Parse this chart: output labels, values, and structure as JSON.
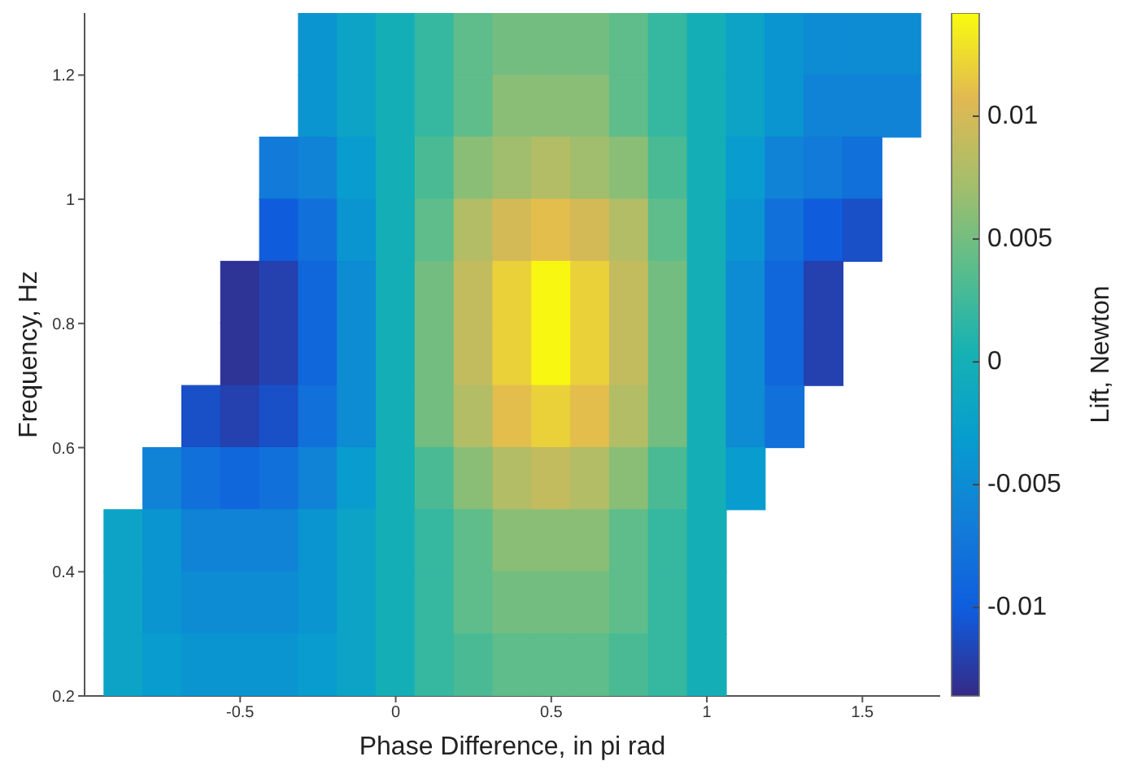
{
  "chart_data": {
    "type": "scatter",
    "xlabel": "Phase Difference, in pi rad",
    "ylabel": "Frequency, Hz",
    "clabel": "Lift, Newton",
    "marker": "square",
    "xlim": [
      -1,
      1.75
    ],
    "xticks": [
      -0.5,
      0,
      0.5,
      1,
      1.5
    ],
    "ylim": [
      0.2,
      1.3
    ],
    "yticks": [
      0.2,
      0.4,
      0.6,
      0.8,
      1,
      1.2
    ],
    "clim": [
      -0.0136,
      0.0142
    ],
    "cticks": [
      -0.01,
      -0.005,
      0,
      0.005,
      0.01
    ],
    "series": [
      {
        "x": [
          -0.25,
          -0.125,
          0,
          0.125,
          0.25,
          0.375,
          0.5,
          0.625,
          0.75,
          0.875,
          1,
          1.125,
          1.25,
          1.375,
          1.5,
          1.625
        ],
        "values": [
          1.25,
          1.25,
          1.25,
          1.25,
          1.25,
          1.25,
          1.25,
          1.25,
          1.25,
          1.25,
          1.25,
          1.25,
          1.25,
          1.25,
          1.25,
          1.25
        ],
        "cvalues": [
          -0.004,
          -0.002,
          0,
          0.002,
          0.004,
          0.005,
          0.005,
          0.005,
          0.004,
          0.002,
          0,
          -0.002,
          -0.004,
          -0.005,
          -0.005,
          -0.005
        ],
        "colors": [
          "#0a95d1",
          "#0ca3c6",
          "#14afb6",
          "#36b7a0",
          "#5ebd8a",
          "#74bd80",
          "#74bd80",
          "#74bd80",
          "#5ebd8a",
          "#36b7a0",
          "#14afb6",
          "#0ca3c6",
          "#0a95d1",
          "#0d8cd4",
          "#0d8cd4",
          "#0d8cd4"
        ]
      },
      {
        "x": [
          -0.25,
          -0.125,
          0,
          0.125,
          0.25,
          0.375,
          0.5,
          0.625,
          0.75,
          0.875,
          1,
          1.125,
          1.25,
          1.375,
          1.5,
          1.625
        ],
        "values": [
          1.15,
          1.15,
          1.15,
          1.15,
          1.15,
          1.15,
          1.15,
          1.15,
          1.15,
          1.15,
          1.15,
          1.15,
          1.15,
          1.15,
          1.15,
          1.15
        ],
        "cvalues": [
          -0.004,
          -0.002,
          0,
          0.002,
          0.004,
          0.006,
          0.006,
          0.006,
          0.004,
          0.002,
          0,
          -0.002,
          -0.004,
          -0.006,
          -0.006,
          -0.006
        ],
        "colors": [
          "#0a95d1",
          "#0ca3c6",
          "#14afb6",
          "#36b7a0",
          "#5ebd8a",
          "#8abe77",
          "#8abe77",
          "#8abe77",
          "#5ebd8a",
          "#36b7a0",
          "#14afb6",
          "#0ca3c6",
          "#0a95d1",
          "#1083d6",
          "#1083d6",
          "#1083d6"
        ]
      },
      {
        "x": [
          -0.375,
          -0.25,
          -0.125,
          0,
          0.125,
          0.25,
          0.375,
          0.5,
          0.625,
          0.75,
          0.875,
          1,
          1.125,
          1.25,
          1.375,
          1.5
        ],
        "values": [
          1.05,
          1.05,
          1.05,
          1.05,
          1.05,
          1.05,
          1.05,
          1.05,
          1.05,
          1.05,
          1.05,
          1.05,
          1.05,
          1.05,
          1.05,
          1.05
        ],
        "cvalues": [
          -0.007,
          -0.006,
          -0.003,
          0,
          0.003,
          0.006,
          0.007,
          0.008,
          0.007,
          0.006,
          0.003,
          0,
          -0.003,
          -0.006,
          -0.007,
          -0.008
        ],
        "colors": [
          "#127ad8",
          "#1083d6",
          "#089dce",
          "#14afb6",
          "#4aba95",
          "#8abe77",
          "#a0be6d",
          "#b2bd66",
          "#a0be6d",
          "#8abe77",
          "#4aba95",
          "#14afb6",
          "#089dce",
          "#1083d6",
          "#127ad8",
          "#1170da"
        ]
      },
      {
        "x": [
          -0.375,
          -0.25,
          -0.125,
          0,
          0.125,
          0.25,
          0.375,
          0.5,
          0.625,
          0.75,
          0.875,
          1,
          1.125,
          1.25,
          1.375,
          1.5
        ],
        "values": [
          0.95,
          0.95,
          0.95,
          0.95,
          0.95,
          0.95,
          0.95,
          0.95,
          0.95,
          0.95,
          0.95,
          0.95,
          0.95,
          0.95,
          0.95,
          0.95
        ],
        "cvalues": [
          -0.01,
          -0.008,
          -0.004,
          0,
          0.004,
          0.008,
          0.01,
          0.011,
          0.01,
          0.008,
          0.004,
          0,
          -0.004,
          -0.008,
          -0.01,
          -0.011
        ],
        "colors": [
          "#0f5ddd",
          "#1170da",
          "#0a95d1",
          "#14afb6",
          "#5ebd8a",
          "#b2bd66",
          "#d4ba57",
          "#e3be4d",
          "#d4ba57",
          "#b2bd66",
          "#5ebd8a",
          "#14afb6",
          "#0a95d1",
          "#1170da",
          "#0f5ddd",
          "#194fc7"
        ]
      },
      {
        "x": [
          -0.5,
          -0.375,
          -0.25,
          -0.125,
          0,
          0.125,
          0.25,
          0.375,
          0.5,
          0.625,
          0.75,
          0.875,
          1,
          1.125,
          1.25,
          1.375
        ],
        "values": [
          0.85,
          0.85,
          0.85,
          0.85,
          0.85,
          0.85,
          0.85,
          0.85,
          0.85,
          0.85,
          0.85,
          0.85,
          0.85,
          0.85,
          0.85,
          0.85
        ],
        "cvalues": [
          -0.013,
          -0.012,
          -0.009,
          -0.005,
          0,
          0.005,
          0.009,
          0.012,
          0.014,
          0.012,
          0.009,
          0.005,
          0,
          -0.005,
          -0.009,
          -0.012
        ],
        "colors": [
          "#2e3396",
          "#2441af",
          "#1067db",
          "#0d8cd4",
          "#14afb6",
          "#74bd80",
          "#c3bc5e",
          "#ead139",
          "#f8f712",
          "#ead139",
          "#c3bc5e",
          "#74bd80",
          "#14afb6",
          "#0d8cd4",
          "#1067db",
          "#2441af"
        ]
      },
      {
        "x": [
          -0.5,
          -0.375,
          -0.25,
          -0.125,
          0,
          0.125,
          0.25,
          0.375,
          0.5,
          0.625,
          0.75,
          0.875,
          1,
          1.125,
          1.25,
          1.375
        ],
        "values": [
          0.75,
          0.75,
          0.75,
          0.75,
          0.75,
          0.75,
          0.75,
          0.75,
          0.75,
          0.75,
          0.75,
          0.75,
          0.75,
          0.75,
          0.75,
          0.75
        ],
        "cvalues": [
          -0.013,
          -0.012,
          -0.009,
          -0.005,
          0,
          0.005,
          0.009,
          0.012,
          0.014,
          0.012,
          0.009,
          0.005,
          0,
          -0.005,
          -0.009,
          -0.012
        ],
        "colors": [
          "#2e3396",
          "#2441af",
          "#1067db",
          "#0d8cd4",
          "#14afb6",
          "#74bd80",
          "#c3bc5e",
          "#ead139",
          "#f8f712",
          "#ead139",
          "#c3bc5e",
          "#74bd80",
          "#14afb6",
          "#0d8cd4",
          "#1067db",
          "#2441af"
        ]
      },
      {
        "x": [
          -0.625,
          -0.5,
          -0.375,
          -0.25,
          -0.125,
          0,
          0.125,
          0.25,
          0.375,
          0.5,
          0.625,
          0.75,
          0.875,
          1,
          1.125,
          1.25
        ],
        "values": [
          0.65,
          0.65,
          0.65,
          0.65,
          0.65,
          0.65,
          0.65,
          0.65,
          0.65,
          0.65,
          0.65,
          0.65,
          0.65,
          0.65,
          0.65,
          0.65
        ],
        "cvalues": [
          -0.011,
          -0.012,
          -0.011,
          -0.008,
          -0.005,
          0,
          0.005,
          0.008,
          0.011,
          0.012,
          0.011,
          0.008,
          0.005,
          0,
          -0.005,
          -0.008
        ],
        "colors": [
          "#194fc7",
          "#2441af",
          "#194fc7",
          "#1170da",
          "#0d8cd4",
          "#14afb6",
          "#74bd80",
          "#b2bd66",
          "#e3be4d",
          "#ead139",
          "#e3be4d",
          "#b2bd66",
          "#74bd80",
          "#14afb6",
          "#0d8cd4",
          "#1170da"
        ]
      },
      {
        "x": [
          -0.75,
          -0.625,
          -0.5,
          -0.375,
          -0.25,
          -0.125,
          0,
          0.125,
          0.25,
          0.375,
          0.5,
          0.625,
          0.75,
          0.875,
          1,
          1.125
        ],
        "values": [
          0.55,
          0.55,
          0.55,
          0.55,
          0.55,
          0.55,
          0.55,
          0.55,
          0.55,
          0.55,
          0.55,
          0.55,
          0.55,
          0.55,
          0.55,
          0.55
        ],
        "cvalues": [
          -0.006,
          -0.008,
          -0.009,
          -0.008,
          -0.006,
          -0.003,
          0,
          0.003,
          0.006,
          0.008,
          0.009,
          0.008,
          0.006,
          0.003,
          0,
          -0.003
        ],
        "colors": [
          "#1083d6",
          "#1170da",
          "#1067db",
          "#1170da",
          "#1083d6",
          "#089dce",
          "#14afb6",
          "#4aba95",
          "#8abe77",
          "#b2bd66",
          "#c3bc5e",
          "#b2bd66",
          "#8abe77",
          "#4aba95",
          "#14afb6",
          "#089dce"
        ]
      },
      {
        "x": [
          -0.875,
          -0.75,
          -0.625,
          -0.5,
          -0.375,
          -0.25,
          -0.125,
          0,
          0.125,
          0.25,
          0.375,
          0.5,
          0.625,
          0.75,
          0.875,
          1
        ],
        "values": [
          0.45,
          0.45,
          0.45,
          0.45,
          0.45,
          0.45,
          0.45,
          0.45,
          0.45,
          0.45,
          0.45,
          0.45,
          0.45,
          0.45,
          0.45,
          0.45
        ],
        "cvalues": [
          -0.002,
          -0.004,
          -0.006,
          -0.006,
          -0.006,
          -0.004,
          -0.002,
          0,
          0.002,
          0.004,
          0.006,
          0.006,
          0.006,
          0.004,
          0.002,
          0
        ],
        "colors": [
          "#0ca3c6",
          "#0a95d1",
          "#1083d6",
          "#1083d6",
          "#1083d6",
          "#0a95d1",
          "#0ca3c6",
          "#14afb6",
          "#36b7a0",
          "#5ebd8a",
          "#8abe77",
          "#8abe77",
          "#8abe77",
          "#5ebd8a",
          "#36b7a0",
          "#14afb6"
        ]
      },
      {
        "x": [
          -0.875,
          -0.75,
          -0.625,
          -0.5,
          -0.375,
          -0.25,
          -0.125,
          0,
          0.125,
          0.25,
          0.375,
          0.5,
          0.625,
          0.75,
          0.875,
          1
        ],
        "values": [
          0.35,
          0.35,
          0.35,
          0.35,
          0.35,
          0.35,
          0.35,
          0.35,
          0.35,
          0.35,
          0.35,
          0.35,
          0.35,
          0.35,
          0.35,
          0.35
        ],
        "cvalues": [
          -0.002,
          -0.004,
          -0.005,
          -0.005,
          -0.005,
          -0.004,
          -0.002,
          0,
          0.002,
          0.004,
          0.005,
          0.005,
          0.005,
          0.004,
          0.002,
          0
        ],
        "colors": [
          "#0ca3c6",
          "#0a95d1",
          "#0d8cd4",
          "#0d8cd4",
          "#0d8cd4",
          "#0a95d1",
          "#0ca3c6",
          "#14afb6",
          "#36b7a0",
          "#5ebd8a",
          "#74bd80",
          "#74bd80",
          "#74bd80",
          "#5ebd8a",
          "#36b7a0",
          "#14afb6"
        ]
      },
      {
        "x": [
          -0.875,
          -0.75,
          -0.625,
          -0.5,
          -0.375,
          -0.25,
          -0.125,
          0,
          0.125,
          0.25,
          0.375,
          0.5,
          0.625,
          0.75,
          0.875,
          1
        ],
        "values": [
          0.25,
          0.25,
          0.25,
          0.25,
          0.25,
          0.25,
          0.25,
          0.25,
          0.25,
          0.25,
          0.25,
          0.25,
          0.25,
          0.25,
          0.25,
          0.25
        ],
        "cvalues": [
          -0.002,
          -0.003,
          -0.004,
          -0.004,
          -0.004,
          -0.003,
          -0.002,
          0,
          0.002,
          0.003,
          0.004,
          0.004,
          0.004,
          0.003,
          0.002,
          0
        ],
        "colors": [
          "#0ca3c6",
          "#089dce",
          "#0a95d1",
          "#0a95d1",
          "#0a95d1",
          "#089dce",
          "#0ca3c6",
          "#14afb6",
          "#36b7a0",
          "#4aba95",
          "#5ebd8a",
          "#5ebd8a",
          "#5ebd8a",
          "#4aba95",
          "#36b7a0",
          "#14afb6"
        ]
      }
    ]
  }
}
